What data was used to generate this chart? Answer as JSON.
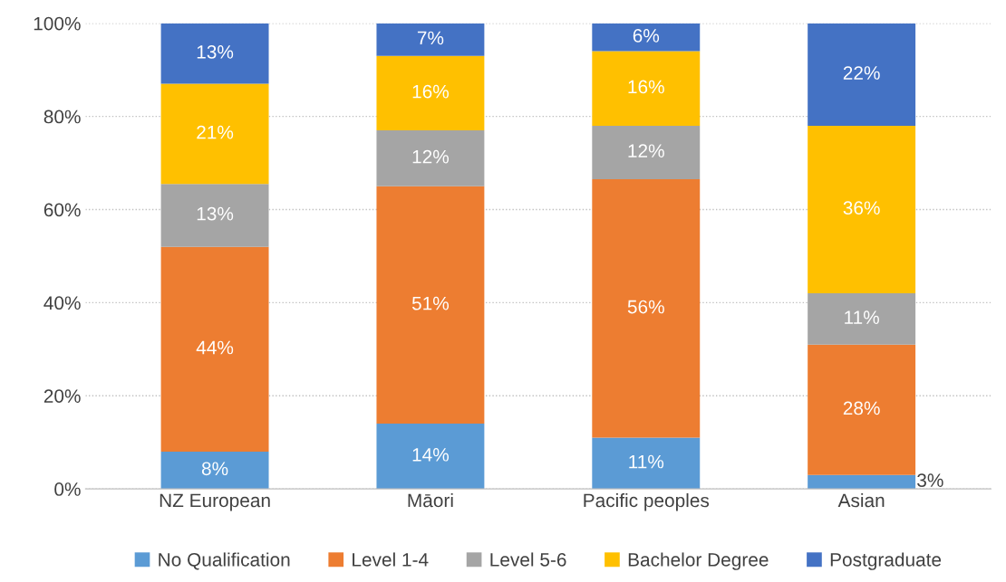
{
  "chart_data": {
    "type": "bar",
    "stacked": true,
    "categories": [
      "NZ European",
      "Māori",
      "Pacific peoples",
      "Asian"
    ],
    "series": [
      {
        "name": "No Qualification",
        "color": "#5b9bd5",
        "values": [
          8,
          14,
          11,
          3
        ],
        "value_labels": [
          "8%",
          "14%",
          "11%",
          "3%"
        ]
      },
      {
        "name": "Level 1-4",
        "color": "#ed7d31",
        "values": [
          44,
          51,
          55.5,
          28
        ],
        "value_labels": [
          "44%",
          "51%",
          "56%",
          "28%"
        ]
      },
      {
        "name": "Level 5-6",
        "color": "#a5a5a5",
        "values": [
          13.5,
          12,
          11.5,
          11
        ],
        "value_labels": [
          "13%",
          "12%",
          "12%",
          "11%"
        ]
      },
      {
        "name": "Bachelor Degree",
        "color": "#ffc000",
        "values": [
          21.5,
          16,
          16,
          36
        ],
        "value_labels": [
          "21%",
          "16%",
          "16%",
          "36%"
        ]
      },
      {
        "name": "Postgraduate",
        "color": "#4472c4",
        "values": [
          13,
          7,
          6,
          22
        ],
        "value_labels": [
          "13%",
          "7%",
          "6%",
          "22%"
        ]
      }
    ],
    "ylim": [
      0,
      100
    ],
    "yticks": [
      {
        "value": 0,
        "label": "0%"
      },
      {
        "value": 20,
        "label": "20%"
      },
      {
        "value": 40,
        "label": "40%"
      },
      {
        "value": 60,
        "label": "60%"
      },
      {
        "value": 80,
        "label": "80%"
      },
      {
        "value": 100,
        "label": "100%"
      }
    ],
    "grid": "y",
    "legend": "bottom"
  }
}
